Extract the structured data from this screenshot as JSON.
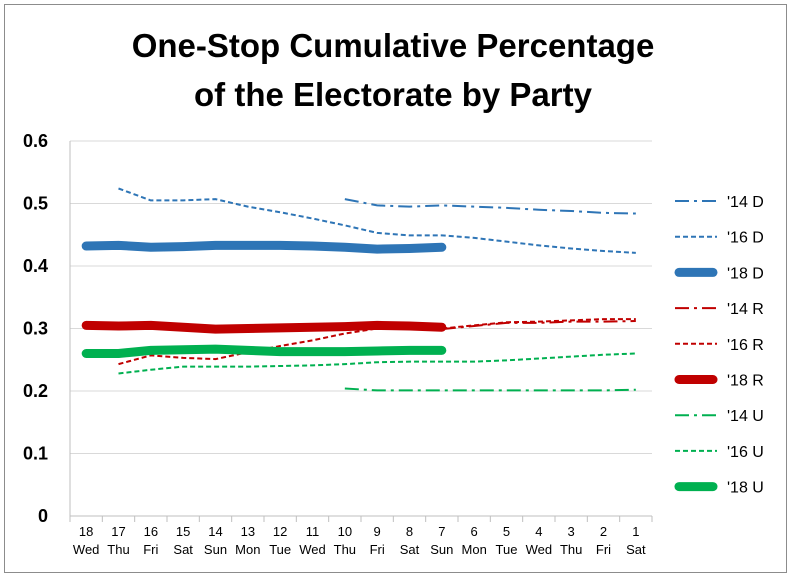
{
  "chart_data": {
    "type": "line",
    "title": [
      "One-Stop Cumulative Percentage",
      "of the Electorate by Party"
    ],
    "xlabel": "",
    "ylabel": "",
    "ylim": [
      0,
      0.6
    ],
    "yticks": [
      "0",
      "0.1",
      "0.2",
      "0.3",
      "0.4",
      "0.5",
      "0.6"
    ],
    "categories": [
      [
        "18",
        "Wed"
      ],
      [
        "17",
        "Thu"
      ],
      [
        "16",
        "Fri"
      ],
      [
        "15",
        "Sat"
      ],
      [
        "14",
        "Sun"
      ],
      [
        "13",
        "Mon"
      ],
      [
        "12",
        "Tue"
      ],
      [
        "11",
        "Wed"
      ],
      [
        "10",
        "Thu"
      ],
      [
        "9",
        "Fri"
      ],
      [
        "8",
        "Sat"
      ],
      [
        "7",
        "Sun"
      ],
      [
        "6",
        "Mon"
      ],
      [
        "5",
        "Tue"
      ],
      [
        "4",
        "Wed"
      ],
      [
        "3",
        "Thu"
      ],
      [
        "2",
        "Fri"
      ],
      [
        "1",
        "Sat"
      ]
    ],
    "grid": "horizontal",
    "legend": "right",
    "series": [
      {
        "name": "'14 D",
        "color": "#2e75b6",
        "style": "dashdot",
        "width": 2,
        "values": [
          null,
          null,
          null,
          null,
          null,
          null,
          null,
          null,
          0.507,
          0.497,
          0.495,
          0.497,
          0.495,
          0.493,
          0.49,
          0.488,
          0.485,
          0.484
        ]
      },
      {
        "name": "'16 D",
        "color": "#2e75b6",
        "style": "dash",
        "width": 2,
        "values": [
          null,
          0.524,
          0.505,
          0.505,
          0.507,
          0.495,
          0.486,
          0.476,
          0.465,
          0.453,
          0.449,
          0.449,
          0.445,
          0.439,
          0.433,
          0.428,
          0.424,
          0.421
        ]
      },
      {
        "name": "'18 D",
        "color": "#2e75b6",
        "style": "solid",
        "width": 9,
        "values": [
          0.432,
          0.433,
          0.43,
          0.431,
          0.433,
          0.433,
          0.433,
          0.432,
          0.43,
          0.427,
          0.428,
          0.43,
          null,
          null,
          null,
          null,
          null,
          null
        ]
      },
      {
        "name": "'14 R",
        "color": "#c00000",
        "style": "dashdot",
        "width": 2,
        "values": [
          null,
          null,
          null,
          null,
          null,
          null,
          null,
          null,
          null,
          null,
          null,
          0.299,
          0.304,
          0.309,
          0.309,
          0.311,
          0.311,
          0.312
        ]
      },
      {
        "name": "'16 R",
        "color": "#c00000",
        "style": "dash",
        "width": 2,
        "values": [
          null,
          0.243,
          0.257,
          0.253,
          0.251,
          0.262,
          0.272,
          0.281,
          0.292,
          0.3,
          0.3,
          0.3,
          0.305,
          0.31,
          0.311,
          0.313,
          0.315,
          0.315
        ]
      },
      {
        "name": "'18 R",
        "color": "#c00000",
        "style": "solid",
        "width": 9,
        "values": [
          0.305,
          0.304,
          0.305,
          0.302,
          0.299,
          0.3,
          0.301,
          0.302,
          0.303,
          0.305,
          0.304,
          0.302,
          null,
          null,
          null,
          null,
          null,
          null
        ]
      },
      {
        "name": "'14 U",
        "color": "#00b050",
        "style": "dashdot",
        "width": 2,
        "values": [
          null,
          null,
          null,
          null,
          null,
          null,
          null,
          null,
          0.204,
          0.201,
          0.201,
          0.201,
          0.201,
          0.201,
          0.201,
          0.201,
          0.201,
          0.202
        ]
      },
      {
        "name": "'16 U",
        "color": "#00b050",
        "style": "dash",
        "width": 2,
        "values": [
          null,
          0.228,
          0.234,
          0.239,
          0.239,
          0.239,
          0.24,
          0.241,
          0.243,
          0.246,
          0.247,
          0.247,
          0.247,
          0.249,
          0.252,
          0.255,
          0.258,
          0.26
        ]
      },
      {
        "name": "'18 U",
        "color": "#00b050",
        "style": "solid",
        "width": 9,
        "values": [
          0.26,
          0.26,
          0.265,
          0.266,
          0.267,
          0.265,
          0.263,
          0.263,
          0.263,
          0.264,
          0.265,
          0.265,
          null,
          null,
          null,
          null,
          null,
          null
        ]
      }
    ]
  }
}
